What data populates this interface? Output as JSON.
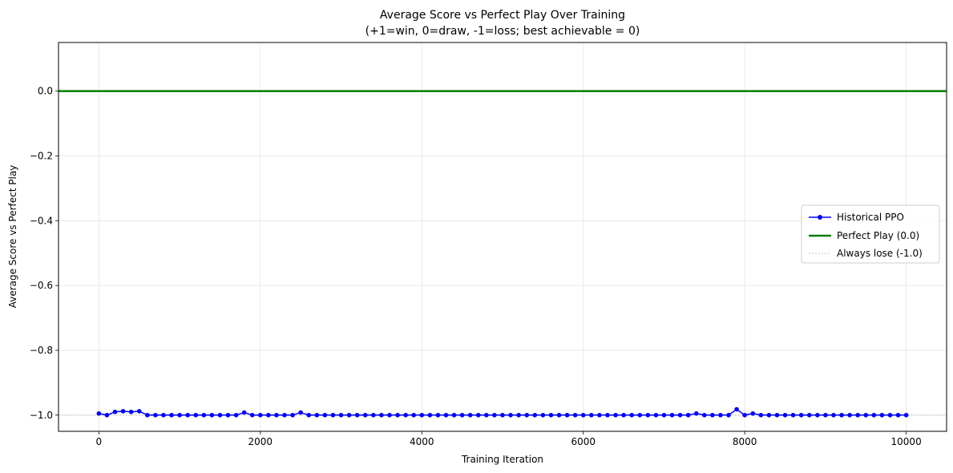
{
  "chart_data": {
    "type": "line",
    "title": "Average Score vs Perfect Play Over Training",
    "subtitle": "(+1=win, 0=draw, -1=loss; best achievable = 0)",
    "xlabel": "Training Iteration",
    "ylabel": "Average Score vs Perfect Play",
    "xlim": [
      -500,
      10500
    ],
    "ylim": [
      -1.05,
      0.15
    ],
    "xticks": [
      0,
      2000,
      4000,
      6000,
      8000,
      10000
    ],
    "xtick_labels": [
      "0",
      "2000",
      "4000",
      "6000",
      "8000",
      "10000"
    ],
    "yticks": [
      0.0,
      -0.2,
      -0.4,
      -0.6,
      -0.8,
      -1.0
    ],
    "ytick_labels": [
      "0.0",
      "−0.2",
      "−0.4",
      "−0.6",
      "−0.8",
      "−1.0"
    ],
    "grid": true,
    "legend_position": "center-right",
    "series": [
      {
        "name": "Historical PPO",
        "color": "#0000ff",
        "style": "line-with-markers",
        "x": [
          0,
          100,
          200,
          300,
          400,
          500,
          600,
          700,
          800,
          900,
          1000,
          1100,
          1200,
          1300,
          1400,
          1500,
          1600,
          1700,
          1800,
          1900,
          2000,
          2100,
          2200,
          2300,
          2400,
          2500,
          2600,
          2700,
          2800,
          2900,
          3000,
          3100,
          3200,
          3300,
          3400,
          3500,
          3600,
          3700,
          3800,
          3900,
          4000,
          4100,
          4200,
          4300,
          4400,
          4500,
          4600,
          4700,
          4800,
          4900,
          5000,
          5100,
          5200,
          5300,
          5400,
          5500,
          5600,
          5700,
          5800,
          5900,
          6000,
          6100,
          6200,
          6300,
          6400,
          6500,
          6600,
          6700,
          6800,
          6900,
          7000,
          7100,
          7200,
          7300,
          7400,
          7500,
          7600,
          7700,
          7800,
          7900,
          8000,
          8100,
          8200,
          8300,
          8400,
          8500,
          8600,
          8700,
          8800,
          8900,
          9000,
          9100,
          9200,
          9300,
          9400,
          9500,
          9600,
          9700,
          9800,
          9900,
          10000
        ],
        "y": [
          -0.995,
          -1.0,
          -0.99,
          -0.988,
          -0.99,
          -0.988,
          -1.0,
          -1.0,
          -1.0,
          -1.0,
          -1.0,
          -1.0,
          -1.0,
          -1.0,
          -1.0,
          -1.0,
          -1.0,
          -1.0,
          -0.992,
          -1.0,
          -1.0,
          -1.0,
          -1.0,
          -1.0,
          -1.0,
          -0.992,
          -1.0,
          -1.0,
          -1.0,
          -1.0,
          -1.0,
          -1.0,
          -1.0,
          -1.0,
          -1.0,
          -1.0,
          -1.0,
          -1.0,
          -1.0,
          -1.0,
          -1.0,
          -1.0,
          -1.0,
          -1.0,
          -1.0,
          -1.0,
          -1.0,
          -1.0,
          -1.0,
          -1.0,
          -1.0,
          -1.0,
          -1.0,
          -1.0,
          -1.0,
          -1.0,
          -1.0,
          -1.0,
          -1.0,
          -1.0,
          -1.0,
          -1.0,
          -1.0,
          -1.0,
          -1.0,
          -1.0,
          -1.0,
          -1.0,
          -1.0,
          -1.0,
          -1.0,
          -1.0,
          -1.0,
          -1.0,
          -0.995,
          -1.0,
          -1.0,
          -1.0,
          -1.0,
          -0.982,
          -1.0,
          -0.995,
          -1.0,
          -1.0,
          -1.0,
          -1.0,
          -1.0,
          -1.0,
          -1.0,
          -1.0,
          -1.0,
          -1.0,
          -1.0,
          -1.0,
          -1.0,
          -1.0,
          -1.0,
          -1.0,
          -1.0,
          -1.0,
          -1.0
        ]
      },
      {
        "name": "Perfect Play (0.0)",
        "color": "#008000",
        "style": "horizontal-line",
        "y": 0.0
      },
      {
        "name": "Always lose (-1.0)",
        "color": "#c0c0c0",
        "style": "dotted-horizontal-line",
        "y": -1.0
      }
    ]
  }
}
